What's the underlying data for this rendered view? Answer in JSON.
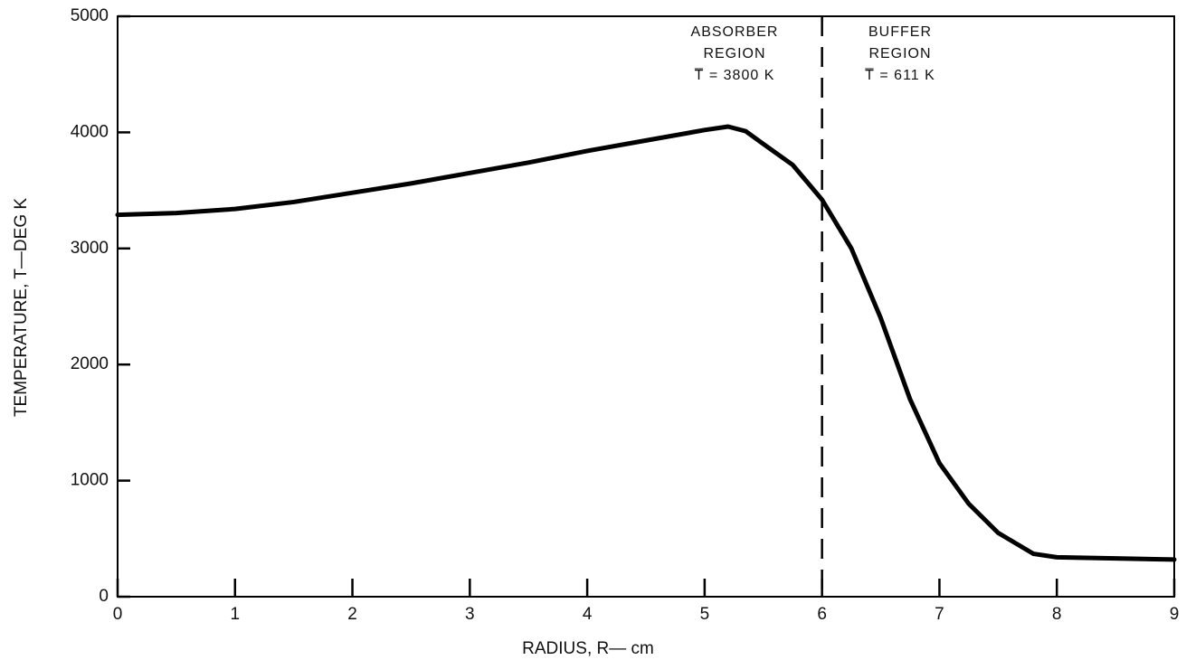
{
  "chart_data": {
    "type": "line",
    "xlabel": "RADIUS, R— cm",
    "ylabel": "TEMPERATURE, T—DEG K",
    "x": [
      0,
      0.5,
      1,
      1.5,
      2,
      2.5,
      3,
      3.5,
      4,
      4.5,
      5,
      5.2,
      5.35,
      5.5,
      5.75,
      6,
      6.25,
      6.5,
      6.75,
      7,
      7.25,
      7.5,
      7.8,
      8,
      8.5,
      9
    ],
    "series": [
      {
        "color": "#000000",
        "values": [
          3290,
          3305,
          3340,
          3400,
          3480,
          3560,
          3650,
          3740,
          3840,
          3930,
          4020,
          4050,
          4010,
          3900,
          3720,
          3420,
          3000,
          2400,
          1700,
          1150,
          800,
          550,
          370,
          340,
          330,
          320
        ]
      }
    ],
    "xlim": [
      0,
      9
    ],
    "xticks": [
      0,
      1,
      2,
      3,
      4,
      5,
      6,
      7,
      8,
      9
    ],
    "ylim": [
      0,
      5000
    ],
    "yticks": [
      0,
      1000,
      2000,
      3000,
      4000,
      5000
    ],
    "vline": 6,
    "annotations": [
      [
        "ABSORBER",
        "REGION",
        "T̅ = 3800 K"
      ],
      [
        "BUFFER",
        "REGION",
        "T̅ = 611 K"
      ]
    ]
  }
}
